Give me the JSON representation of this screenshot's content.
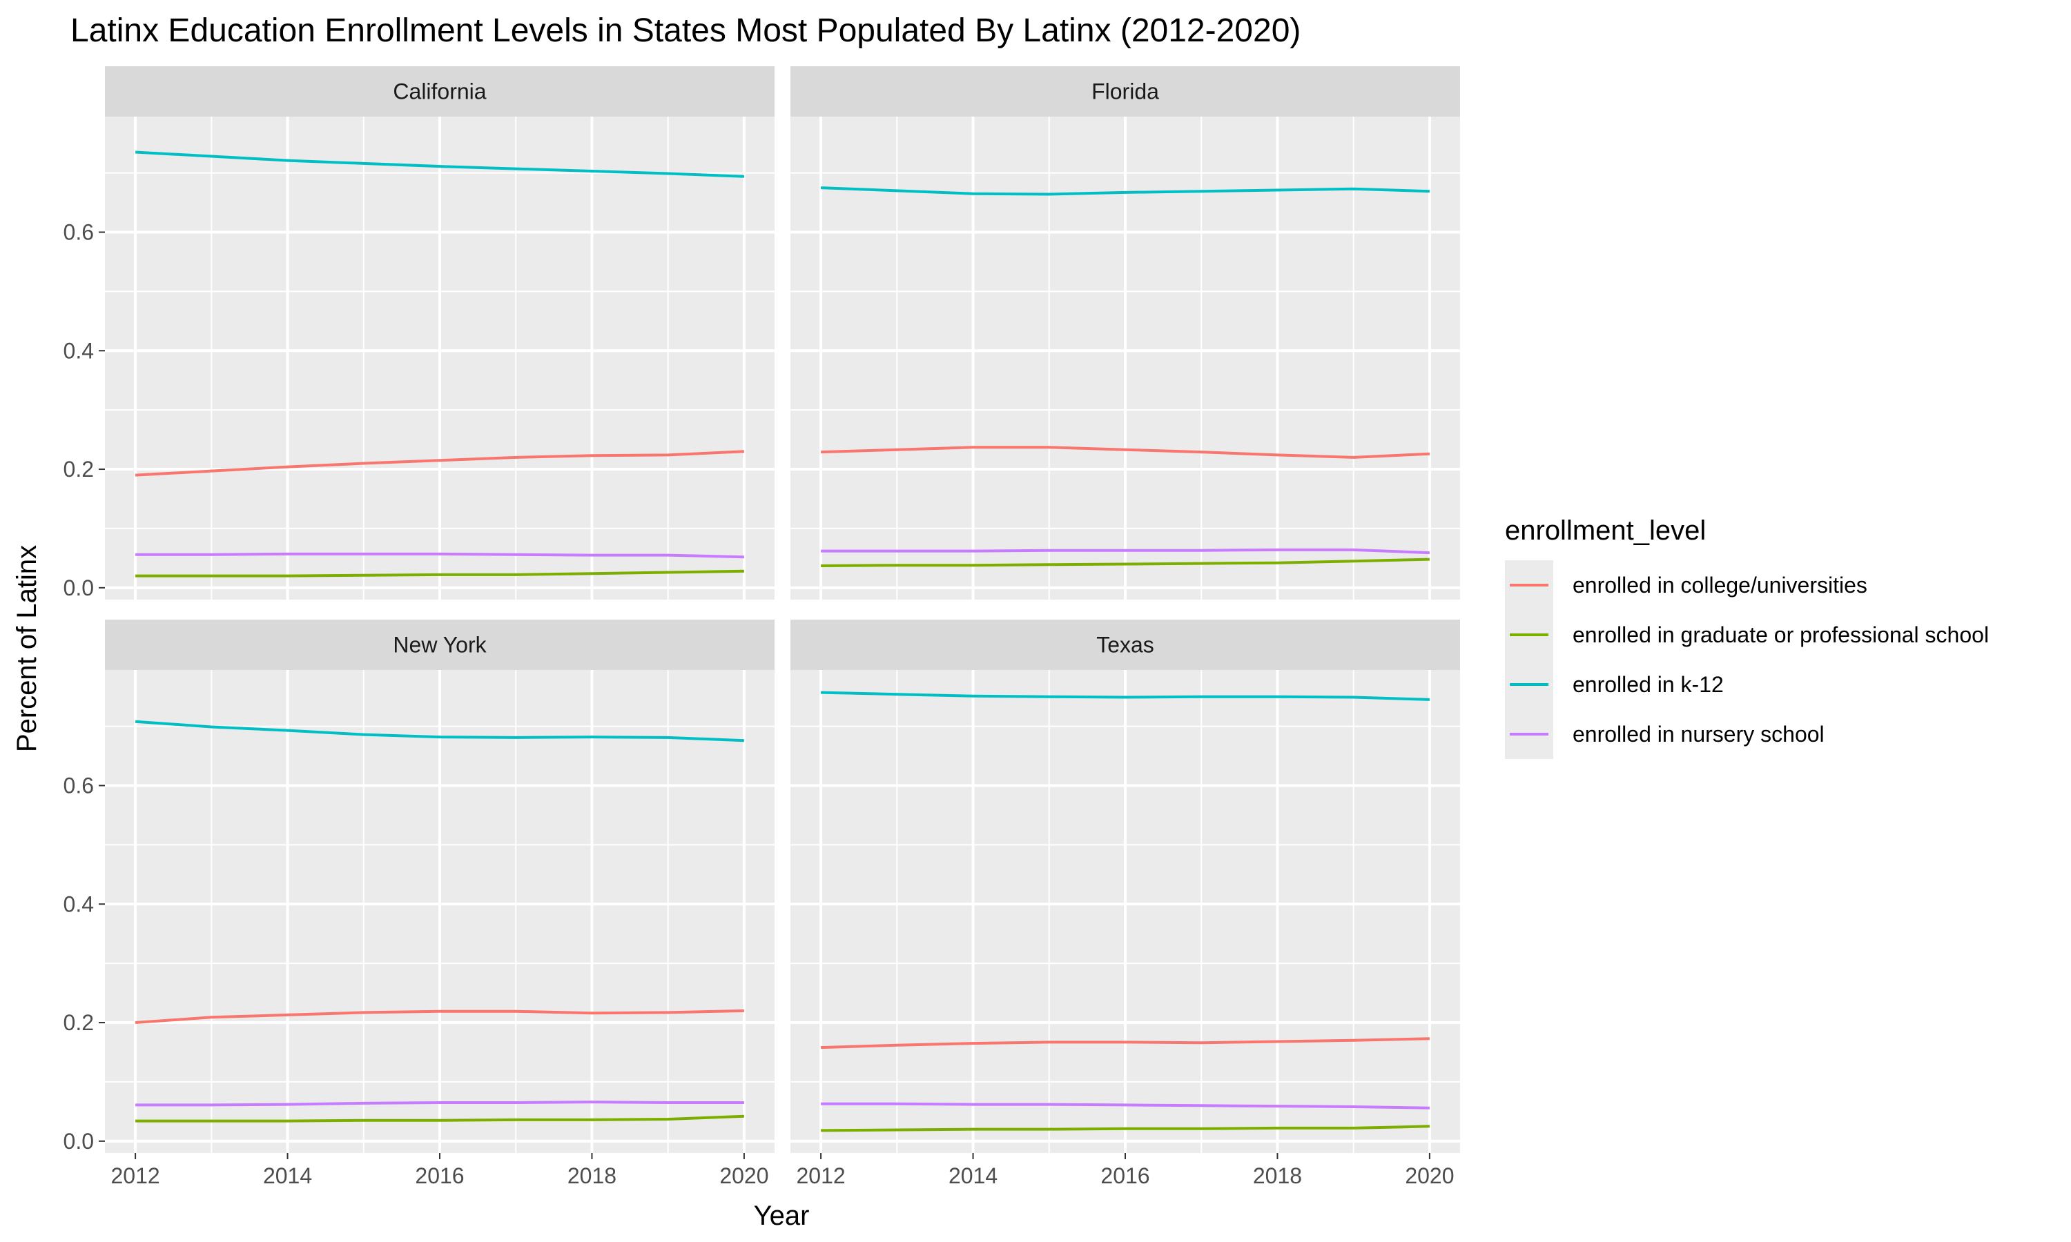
{
  "chart_data": {
    "type": "line",
    "title": "Latinx Education Enrollment Levels in States Most Populated By Latinx (2012-2020)",
    "xlabel": "Year",
    "ylabel": "Percent of Latinx",
    "xlim": [
      2011.6,
      2020.4
    ],
    "ylim": [
      -0.02,
      0.795
    ],
    "x_ticks": [
      2012,
      2014,
      2016,
      2018,
      2020
    ],
    "x_tick_labels": [
      "2012",
      "2014",
      "2016",
      "2018",
      "2020"
    ],
    "y_ticks": [
      0.0,
      0.2,
      0.4,
      0.6
    ],
    "y_tick_labels": [
      "0.0",
      "0.2",
      "0.4",
      "0.6"
    ],
    "grid": true,
    "legend": {
      "title": "enrollment_level",
      "placement": "right"
    },
    "x": [
      2012,
      2013,
      2014,
      2015,
      2016,
      2017,
      2018,
      2019,
      2020
    ],
    "series_names": [
      "enrolled in college/universities",
      "enrolled in graduate or professional school",
      "enrolled in k-12",
      "enrolled in nursery school"
    ],
    "series_colors": [
      "#F8766D",
      "#7CAE00",
      "#00BFC4",
      "#C77CFF"
    ],
    "panels": [
      {
        "name": "California",
        "series": [
          {
            "name": "enrolled in college/universities",
            "values": [
              0.19,
              0.197,
              0.204,
              0.21,
              0.215,
              0.22,
              0.223,
              0.224,
              0.23
            ]
          },
          {
            "name": "enrolled in graduate or professional school",
            "values": [
              0.02,
              0.02,
              0.02,
              0.021,
              0.022,
              0.022,
              0.024,
              0.026,
              0.028
            ]
          },
          {
            "name": "enrolled in k-12",
            "values": [
              0.735,
              0.728,
              0.721,
              0.716,
              0.711,
              0.707,
              0.703,
              0.699,
              0.694
            ]
          },
          {
            "name": "enrolled in nursery school",
            "values": [
              0.056,
              0.056,
              0.057,
              0.057,
              0.057,
              0.056,
              0.055,
              0.055,
              0.052
            ]
          }
        ]
      },
      {
        "name": "Florida",
        "series": [
          {
            "name": "enrolled in college/universities",
            "values": [
              0.229,
              0.233,
              0.237,
              0.237,
              0.233,
              0.229,
              0.224,
              0.22,
              0.226
            ]
          },
          {
            "name": "enrolled in graduate or professional school",
            "values": [
              0.037,
              0.038,
              0.038,
              0.039,
              0.04,
              0.041,
              0.042,
              0.045,
              0.048
            ]
          },
          {
            "name": "enrolled in k-12",
            "values": [
              0.675,
              0.67,
              0.665,
              0.664,
              0.667,
              0.669,
              0.671,
              0.673,
              0.669
            ]
          },
          {
            "name": "enrolled in nursery school",
            "values": [
              0.062,
              0.062,
              0.062,
              0.063,
              0.063,
              0.063,
              0.064,
              0.064,
              0.059
            ]
          }
        ]
      },
      {
        "name": "New York",
        "series": [
          {
            "name": "enrolled in college/universities",
            "values": [
              0.2,
              0.209,
              0.213,
              0.217,
              0.219,
              0.219,
              0.216,
              0.217,
              0.22
            ]
          },
          {
            "name": "enrolled in graduate or professional school",
            "values": [
              0.034,
              0.034,
              0.034,
              0.035,
              0.035,
              0.036,
              0.036,
              0.037,
              0.042
            ]
          },
          {
            "name": "enrolled in k-12",
            "values": [
              0.708,
              0.699,
              0.693,
              0.686,
              0.682,
              0.681,
              0.682,
              0.681,
              0.676
            ]
          },
          {
            "name": "enrolled in nursery school",
            "values": [
              0.061,
              0.061,
              0.062,
              0.064,
              0.065,
              0.065,
              0.066,
              0.065,
              0.065
            ]
          }
        ]
      },
      {
        "name": "Texas",
        "series": [
          {
            "name": "enrolled in college/universities",
            "values": [
              0.158,
              0.162,
              0.165,
              0.167,
              0.167,
              0.166,
              0.168,
              0.17,
              0.173
            ]
          },
          {
            "name": "enrolled in graduate or professional school",
            "values": [
              0.018,
              0.019,
              0.02,
              0.02,
              0.021,
              0.021,
              0.022,
              0.022,
              0.025
            ]
          },
          {
            "name": "enrolled in k-12",
            "values": [
              0.757,
              0.754,
              0.751,
              0.75,
              0.749,
              0.75,
              0.75,
              0.749,
              0.745
            ]
          },
          {
            "name": "enrolled in nursery school",
            "values": [
              0.063,
              0.063,
              0.062,
              0.062,
              0.061,
              0.06,
              0.059,
              0.058,
              0.056
            ]
          }
        ]
      }
    ]
  }
}
